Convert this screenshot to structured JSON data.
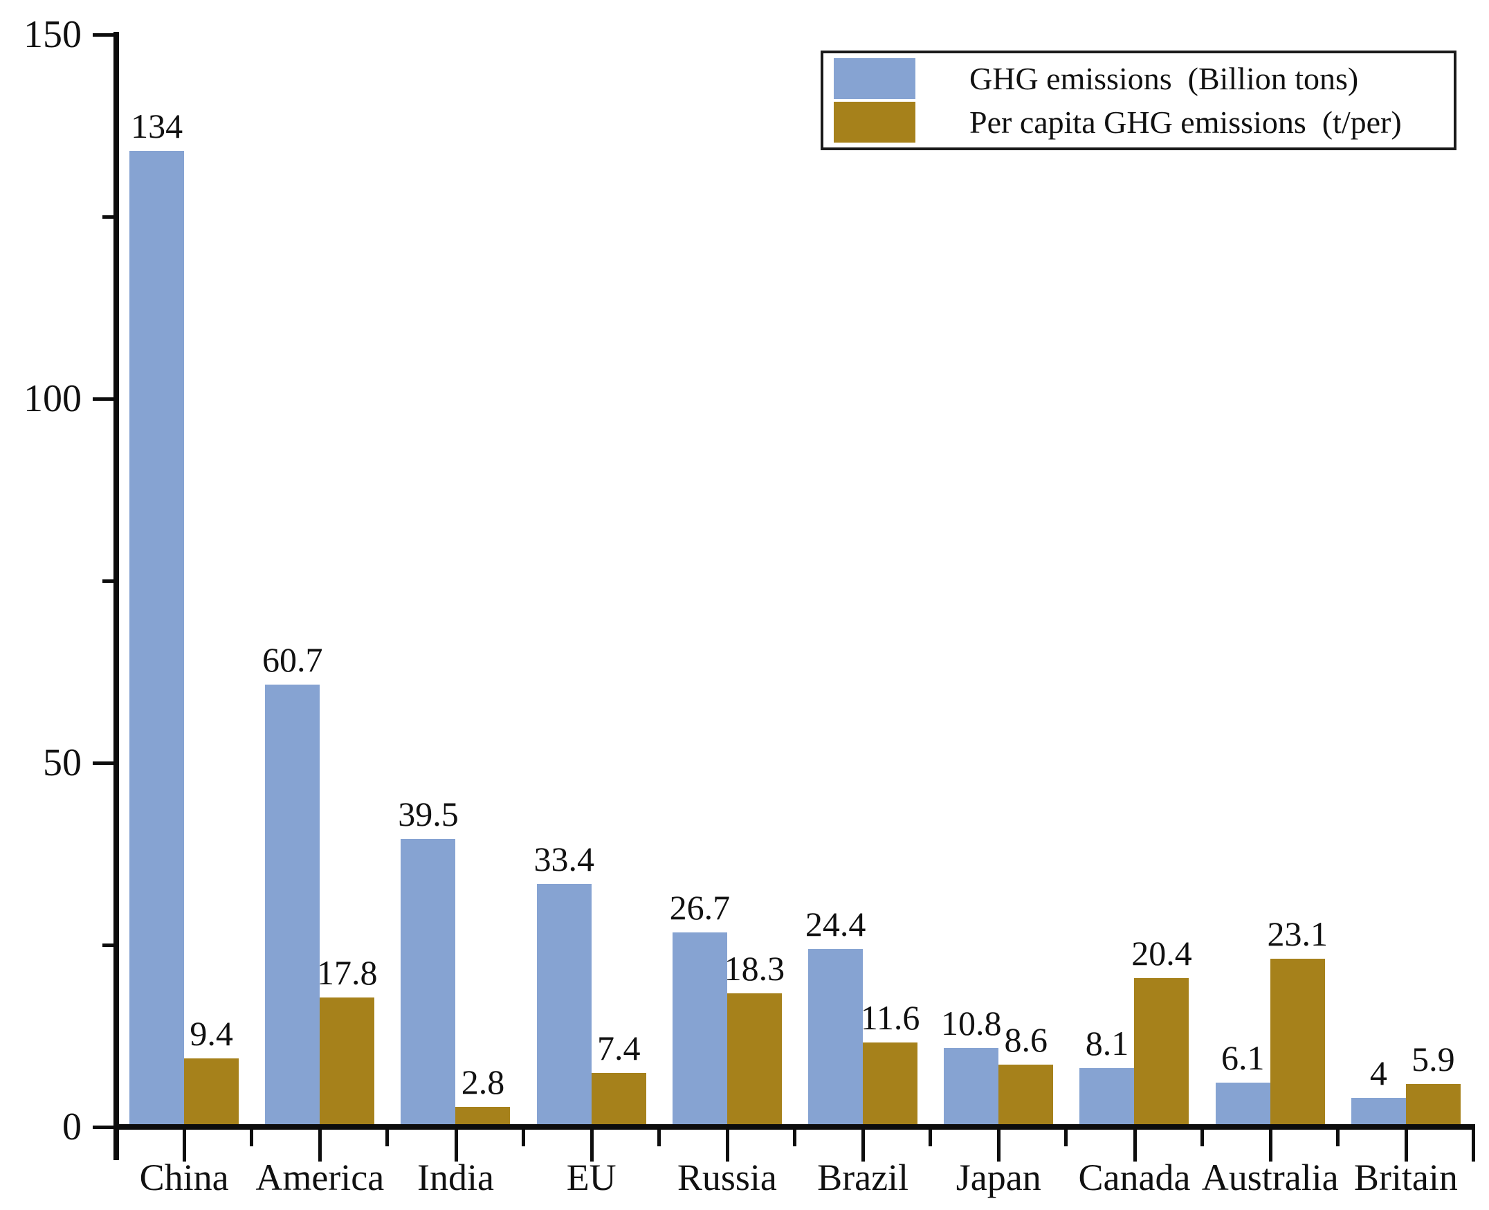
{
  "chart_data": {
    "type": "bar",
    "title": "",
    "xlabel": "",
    "ylabel": "",
    "categories": [
      "China",
      "America",
      "India",
      "EU",
      "Russia",
      "Brazil",
      "Japan",
      "Canada",
      "Australia",
      "Britain"
    ],
    "series": [
      {
        "name": "GHG emissions  (Billion tons)",
        "color": "#86a3d2",
        "values": [
          134,
          60.7,
          39.5,
          33.4,
          26.7,
          24.4,
          10.8,
          8.1,
          6.1,
          4
        ],
        "labels": [
          "134",
          "60.7",
          "39.5",
          "33.4",
          "26.7",
          "24.4",
          "10.8",
          "8.1",
          "6.1",
          "4"
        ]
      },
      {
        "name": "Per capita GHG emissions  (t/per)",
        "color": "#a6811b",
        "values": [
          9.4,
          17.8,
          2.8,
          7.4,
          18.3,
          11.6,
          8.6,
          20.4,
          23.1,
          5.9
        ],
        "labels": [
          "9.4",
          "17.8",
          "2.8",
          "7.4",
          "18.3",
          "11.6",
          "8.6",
          "20.4",
          "23.1",
          "5.9"
        ]
      }
    ],
    "ylim": [
      0,
      150
    ],
    "yticks": [
      0,
      50,
      100,
      150
    ],
    "yticks_minor": [
      25,
      75,
      125
    ],
    "grid": false,
    "legend_position": "top-right",
    "axis_color": "#0d0d0d",
    "background_color": "#ffffff"
  }
}
